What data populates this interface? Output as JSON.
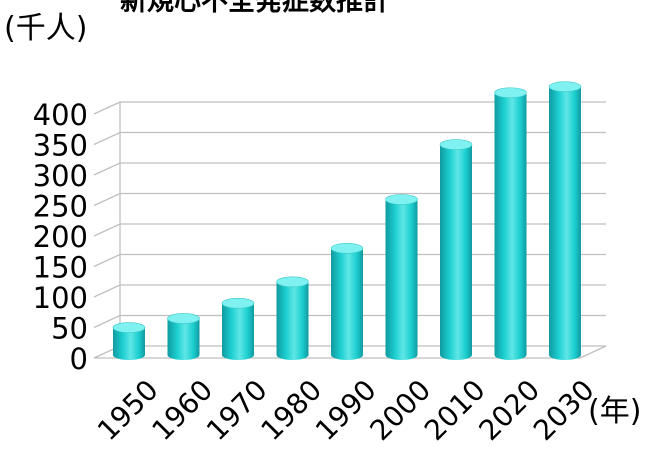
{
  "chart_data": {
    "type": "bar",
    "title": "新規心不全発症数推計",
    "ylabel": "(千人)",
    "xlabel": "(年)",
    "categories": [
      "1950",
      "1960",
      "1970",
      "1980",
      "1990",
      "2000",
      "2010",
      "2020",
      "2030"
    ],
    "values": [
      40,
      55,
      80,
      115,
      170,
      250,
      340,
      425,
      435
    ],
    "yticks": [
      "0",
      "50",
      "100",
      "150",
      "200",
      "250",
      "300",
      "350",
      "400"
    ],
    "ylim": [
      0,
      450
    ],
    "grid": true,
    "legend": "none",
    "colors": {
      "bar_front": "#1ccfd0",
      "bar_side": "#119aa0",
      "bar_top": "#7ef1f0",
      "grid": "#bfbfbf",
      "text": "#000000"
    }
  }
}
